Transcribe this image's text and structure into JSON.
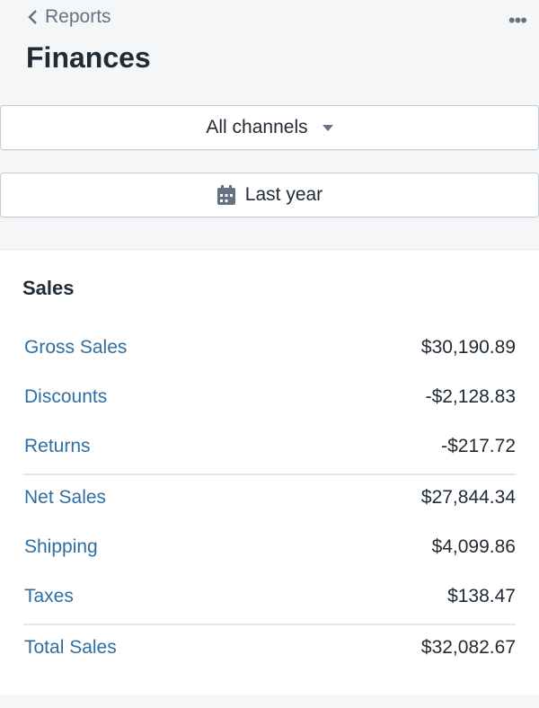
{
  "header": {
    "back_label": "Reports",
    "title": "Finances",
    "more_icon": "ellipsis-icon"
  },
  "filters": {
    "channel": "All channels",
    "date_range": "Last year"
  },
  "sales": {
    "title": "Sales",
    "rows": [
      {
        "label": "Gross Sales",
        "value": "$30,190.89"
      },
      {
        "label": "Discounts",
        "value": "-$2,128.83"
      },
      {
        "label": "Returns",
        "value": "-$217.72"
      },
      {
        "label": "Net Sales",
        "value": "$27,844.34"
      },
      {
        "label": "Shipping",
        "value": "$4,099.86"
      },
      {
        "label": "Taxes",
        "value": "$138.47"
      },
      {
        "label": "Total Sales",
        "value": "$32,082.67"
      }
    ]
  },
  "colors": {
    "link": "#2f6ea0",
    "background": "#f4f6f8",
    "text": "#212b36"
  }
}
